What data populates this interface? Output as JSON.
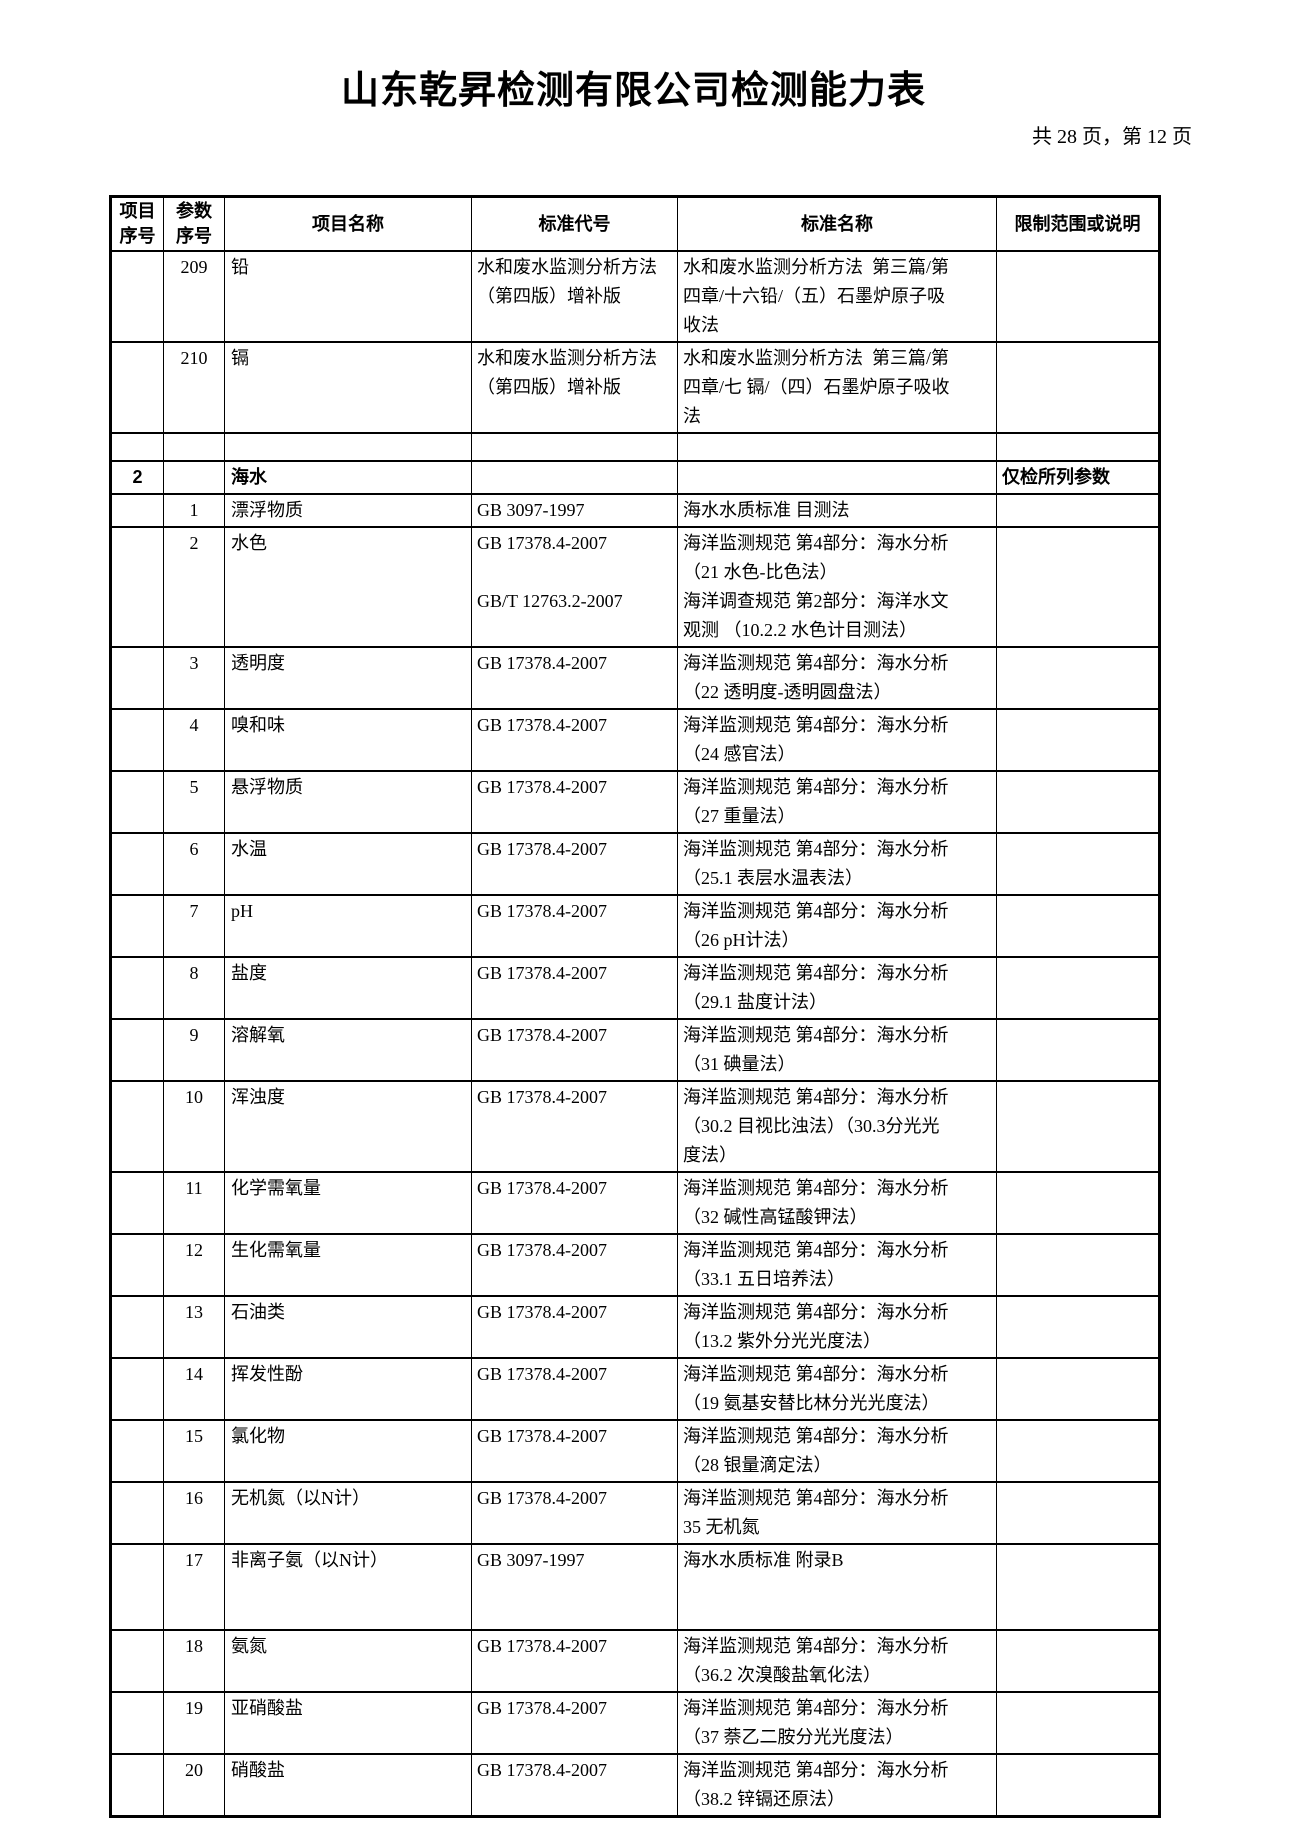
{
  "page": {
    "title": "山东乾昇检测有限公司检测能力表",
    "page_info": "共 28 页，第 12 页"
  },
  "table": {
    "headers": {
      "item_no": "项目\n序号",
      "param_no": "参数\n序号",
      "item_name": "项目名称",
      "standard_code": "标准代号",
      "standard_name": "标准名称",
      "restriction": "限制范围或说明"
    },
    "rows": [
      {
        "type": "data",
        "item_no": "",
        "param_no": "209",
        "name": "铅",
        "code": "水和废水监测分析方法\n（第四版）增补版",
        "std": "水和废水监测分析方法  第三篇/第\n四章/十六铅/（五）石墨炉原子吸\n收法",
        "note": ""
      },
      {
        "type": "data",
        "item_no": "",
        "param_no": "210",
        "name": "镉",
        "code": "水和废水监测分析方法\n（第四版）增补版",
        "std": "水和废水监测分析方法  第三篇/第\n四章/七 镉/（四）石墨炉原子吸收\n法",
        "note": ""
      },
      {
        "type": "empty",
        "item_no": "",
        "param_no": "",
        "name": "",
        "code": "",
        "std": "",
        "note": ""
      },
      {
        "type": "section",
        "item_no": "2",
        "param_no": "",
        "name": "海水",
        "code": "",
        "std": "",
        "note": "仅检所列参数"
      },
      {
        "type": "data",
        "item_no": "",
        "param_no": "1",
        "name": "漂浮物质",
        "code": "GB 3097-1997",
        "std": "海水水质标准 目测法",
        "note": ""
      },
      {
        "type": "data",
        "item_no": "",
        "param_no": "2",
        "name": "水色",
        "code": "GB 17378.4-2007\n\nGB/T 12763.2-2007",
        "std": "海洋监测规范 第4部分：海水分析\n（21 水色-比色法）\n海洋调查规范 第2部分：海洋水文\n观测 （10.2.2 水色计目测法）",
        "note": ""
      },
      {
        "type": "data",
        "item_no": "",
        "param_no": "3",
        "name": "透明度",
        "code": "GB 17378.4-2007",
        "std": "海洋监测规范 第4部分：海水分析\n（22 透明度-透明圆盘法）",
        "note": ""
      },
      {
        "type": "data",
        "item_no": "",
        "param_no": "4",
        "name": "嗅和味",
        "code": "GB 17378.4-2007",
        "std": "海洋监测规范 第4部分：海水分析\n（24 感官法）",
        "note": ""
      },
      {
        "type": "data",
        "item_no": "",
        "param_no": "5",
        "name": "悬浮物质",
        "code": "GB 17378.4-2007",
        "std": "海洋监测规范 第4部分：海水分析\n（27 重量法）",
        "note": ""
      },
      {
        "type": "data",
        "item_no": "",
        "param_no": "6",
        "name": "水温",
        "code": "GB 17378.4-2007",
        "std": "海洋监测规范 第4部分：海水分析\n（25.1 表层水温表法）",
        "note": ""
      },
      {
        "type": "data",
        "item_no": "",
        "param_no": "7",
        "name": "pH",
        "code": "GB 17378.4-2007",
        "std": "海洋监测规范 第4部分：海水分析\n（26 pH计法）",
        "note": ""
      },
      {
        "type": "data",
        "item_no": "",
        "param_no": "8",
        "name": "盐度",
        "code": "GB 17378.4-2007",
        "std": "海洋监测规范 第4部分：海水分析\n（29.1 盐度计法）",
        "note": ""
      },
      {
        "type": "data",
        "item_no": "",
        "param_no": "9",
        "name": "溶解氧",
        "code": "GB 17378.4-2007",
        "std": "海洋监测规范 第4部分：海水分析\n（31 碘量法）",
        "note": ""
      },
      {
        "type": "data",
        "item_no": "",
        "param_no": "10",
        "name": "浑浊度",
        "code": "GB 17378.4-2007",
        "std": "海洋监测规范 第4部分：海水分析\n（30.2 目视比浊法）（30.3分光光\n度法）",
        "note": ""
      },
      {
        "type": "data",
        "item_no": "",
        "param_no": "11",
        "name": "化学需氧量",
        "code": "GB 17378.4-2007",
        "std": "海洋监测规范 第4部分：海水分析\n（32 碱性高锰酸钾法）",
        "note": ""
      },
      {
        "type": "data",
        "item_no": "",
        "param_no": "12",
        "name": "生化需氧量",
        "code": "GB 17378.4-2007",
        "std": "海洋监测规范 第4部分：海水分析\n（33.1 五日培养法）",
        "note": ""
      },
      {
        "type": "data",
        "item_no": "",
        "param_no": "13",
        "name": "石油类",
        "code": "GB 17378.4-2007",
        "std": "海洋监测规范 第4部分：海水分析\n（13.2 紫外分光光度法）",
        "note": ""
      },
      {
        "type": "data",
        "item_no": "",
        "param_no": "14",
        "name": "挥发性酚",
        "code": "GB 17378.4-2007",
        "std": "海洋监测规范 第4部分：海水分析\n（19 氨基安替比林分光光度法）",
        "note": ""
      },
      {
        "type": "data",
        "item_no": "",
        "param_no": "15",
        "name": "氯化物",
        "code": "GB 17378.4-2007",
        "std": "海洋监测规范 第4部分：海水分析\n（28 银量滴定法）",
        "note": ""
      },
      {
        "type": "data",
        "item_no": "",
        "param_no": "16",
        "name": "无机氮（以N计）",
        "code": "GB 17378.4-2007",
        "std": "海洋监测规范 第4部分：海水分析\n35 无机氮",
        "note": ""
      },
      {
        "type": "data",
        "item_no": "",
        "param_no": "17",
        "name": "非离子氨（以N计）",
        "code": "GB 3097-1997",
        "std": "海水水质标准 附录B",
        "note": ""
      },
      {
        "type": "data",
        "item_no": "",
        "param_no": "18",
        "name": "氨氮",
        "code": "GB 17378.4-2007",
        "std": "海洋监测规范 第4部分：海水分析\n（36.2 次溴酸盐氧化法）",
        "note": ""
      },
      {
        "type": "data",
        "item_no": "",
        "param_no": "19",
        "name": "亚硝酸盐",
        "code": "GB 17378.4-2007",
        "std": "海洋监测规范 第4部分：海水分析\n（37 萘乙二胺分光光度法）",
        "note": ""
      },
      {
        "type": "data",
        "item_no": "",
        "param_no": "20",
        "name": "硝酸盐",
        "code": "GB 17378.4-2007",
        "std": "海洋监测规范 第4部分：海水分析\n（38.2 锌镉还原法）",
        "note": ""
      }
    ]
  }
}
